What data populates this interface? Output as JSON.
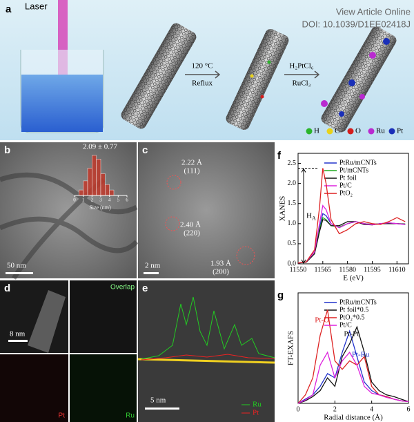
{
  "header": {
    "watermark": "View Article Online",
    "doi": "DOI: 10.1039/D1EE02418J"
  },
  "panel_a": {
    "label": "a",
    "laser": "Laser",
    "step1_top": "120 °C",
    "step1_bottom": "Reflux",
    "step2_top": "H₂PtCl₆",
    "step2_bottom": "RuCl₃",
    "atoms": [
      {
        "name": "H",
        "color": "#2bb52b"
      },
      {
        "name": "C",
        "color": "#e8d21a"
      },
      {
        "name": "O",
        "color": "#d41d1d"
      },
      {
        "name": "Ru",
        "color": "#b92ad0"
      },
      {
        "name": "Pt",
        "color": "#1a2fb8"
      }
    ]
  },
  "panel_b": {
    "label": "b",
    "scale": "50 nm",
    "histogram": {
      "title": "2.09 ± 0.77",
      "xlabel": "Size (nm)",
      "bins": [
        0.5,
        1,
        1.5,
        2,
        2.5,
        3,
        3.5,
        4,
        4.5
      ],
      "counts": [
        3,
        8,
        15,
        22,
        20,
        12,
        6,
        3
      ],
      "xlim": [
        0,
        6
      ],
      "xticks": [
        0,
        1,
        2,
        3,
        4,
        5,
        6
      ],
      "color": "#c0392b"
    }
  },
  "panel_c": {
    "label": "c",
    "spacings": [
      {
        "d": "2.22 Å",
        "plane": "(111)"
      },
      {
        "d": "2.40 Å",
        "plane": "(220)"
      },
      {
        "d": "1.93 Å",
        "plane": "(200)"
      }
    ],
    "scale": "2 nm"
  },
  "panel_d": {
    "label": "d",
    "overlap": "Overlap",
    "scale": "8 nm",
    "pt": "Pt",
    "ru": "Ru"
  },
  "panel_e": {
    "label": "e",
    "scale": "5 nm",
    "ru": "Ru",
    "pt": "Pt"
  },
  "chart_data": [
    {
      "type": "line",
      "label": "f",
      "ylabel": "XANES",
      "xlabel": "E (eV)",
      "annotation": "H",
      "annotation_sub": "A",
      "x": [
        11550,
        11555,
        11560,
        11563,
        11565,
        11567,
        11570,
        11575,
        11580,
        11585,
        11590,
        11595,
        11600,
        11605,
        11610,
        11615
      ],
      "xlim": [
        11550,
        11617
      ],
      "xticks": [
        11550,
        11565,
        11580,
        11595,
        11610
      ],
      "ylim": [
        0,
        2.75
      ],
      "yticks": [
        {
          "value": 0,
          "label": "0.0"
        },
        0.5,
        {
          "value": 1,
          "label": "1.0"
        },
        1.5,
        {
          "value": 2,
          "label": "2.0"
        },
        2.5
      ],
      "series": [
        {
          "name": "PtRu/mCNTs",
          "color": "#2233cc",
          "values": [
            0.02,
            0.05,
            0.3,
            0.9,
            1.25,
            1.2,
            1.0,
            0.9,
            1.0,
            1.05,
            1.0,
            0.98,
            1.0,
            1.02,
            1.0,
            0.98
          ]
        },
        {
          "name": "Pt/mCNTs",
          "color": "#22aa22",
          "values": [
            0.02,
            0.05,
            0.3,
            0.85,
            1.15,
            1.1,
            0.95,
            0.92,
            1.0,
            1.05,
            1.0,
            0.98,
            1.0,
            1.0,
            1.0,
            0.99
          ]
        },
        {
          "name": "Pt foil",
          "color": "#111111",
          "values": [
            0.02,
            0.04,
            0.25,
            0.8,
            1.1,
            1.08,
            0.95,
            0.95,
            1.05,
            1.05,
            0.98,
            0.97,
            1.0,
            1.0,
            1.0,
            0.99
          ]
        },
        {
          "name": "Pt/C",
          "color": "#dd22dd",
          "values": [
            0.02,
            0.05,
            0.3,
            1.0,
            1.45,
            1.35,
            1.0,
            0.9,
            1.0,
            1.05,
            1.0,
            0.97,
            1.0,
            1.02,
            1.0,
            0.98
          ]
        },
        {
          "name": "PtO₂",
          "color": "#dd2222",
          "values": [
            0.02,
            0.05,
            0.35,
            1.4,
            2.38,
            2.0,
            1.1,
            0.75,
            0.85,
            1.0,
            1.05,
            1.0,
            0.98,
            1.05,
            1.15,
            1.05
          ]
        }
      ]
    },
    {
      "type": "line",
      "label": "g",
      "ylabel": "FT-EXAFS",
      "xlabel": "Radial distance (Å)",
      "annotations": [
        "Pt-O",
        "Pt-Pt",
        "Pt-Ru"
      ],
      "x": [
        0,
        0.4,
        0.8,
        1.2,
        1.6,
        2,
        2.4,
        2.8,
        3.2,
        3.6,
        4,
        4.4,
        4.8,
        5.2,
        5.6,
        6
      ],
      "xlim": [
        0,
        6
      ],
      "xticks": [
        0,
        2,
        4,
        6
      ],
      "ylim": [
        0,
        1.3
      ],
      "series": [
        {
          "name": "PtRu/mCNTs",
          "color": "#2233cc",
          "values": [
            0,
            0.05,
            0.1,
            0.2,
            0.35,
            0.3,
            0.6,
            0.85,
            0.55,
            0.25,
            0.15,
            0.1,
            0.08,
            0.05,
            0.03,
            0.02
          ]
        },
        {
          "name": "Pt foil*0.5",
          "color": "#111111",
          "values": [
            0,
            0.03,
            0.08,
            0.15,
            0.3,
            0.2,
            0.55,
            0.7,
            0.9,
            0.6,
            0.25,
            0.15,
            0.1,
            0.08,
            0.05,
            0.02
          ]
        },
        {
          "name": "PtO₂*0.5",
          "color": "#dd2222",
          "values": [
            0,
            0.1,
            0.3,
            0.8,
            1.1,
            0.5,
            0.4,
            0.5,
            0.45,
            0.55,
            0.2,
            0.1,
            0.08,
            0.05,
            0.03,
            0.02
          ]
        },
        {
          "name": "Pt/C",
          "color": "#dd22dd",
          "values": [
            0,
            0.04,
            0.1,
            0.45,
            0.6,
            0.3,
            0.5,
            0.6,
            0.45,
            0.2,
            0.12,
            0.1,
            0.07,
            0.05,
            0.03,
            0.02
          ]
        }
      ]
    }
  ]
}
